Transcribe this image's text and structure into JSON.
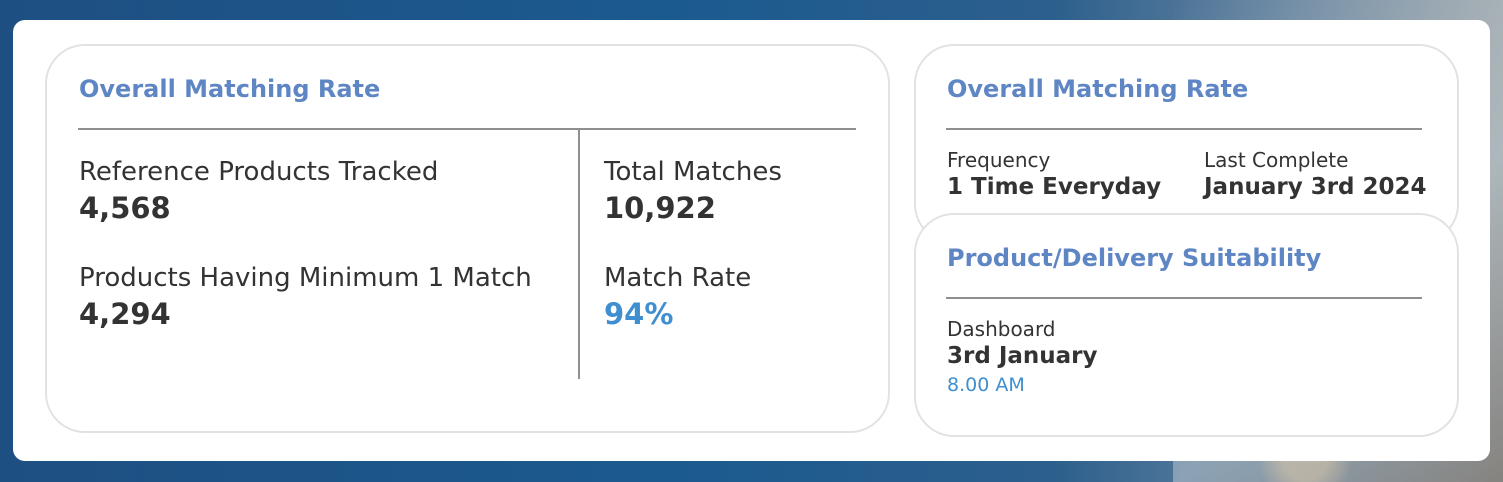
{
  "overall_card": {
    "title": "Overall Matching Rate",
    "stats": {
      "reference_label": "Reference Products Tracked",
      "reference_value": "4,568",
      "min_match_label": "Products Having Minimum 1 Match",
      "min_match_value": "4,294",
      "total_matches_label": "Total Matches",
      "total_matches_value": "10,922",
      "match_rate_label": "Match Rate",
      "match_rate_value": "94%"
    }
  },
  "frequency_card": {
    "title": "Overall Matching Rate",
    "frequency_label": "Frequency",
    "frequency_value": "1 Time Everyday",
    "last_complete_label": "Last Complete",
    "last_complete_value": "January 3rd 2024"
  },
  "suitability_card": {
    "title": "Product/Delivery Suitability",
    "dashboard_label": "Dashboard",
    "dashboard_date": "3rd January",
    "dashboard_time": "8.00 AM"
  },
  "colors": {
    "title_blue": "#5f86c4",
    "accent_blue": "#3f8fd0",
    "text_dark": "#333333",
    "background_navy": "#1e4f82"
  }
}
